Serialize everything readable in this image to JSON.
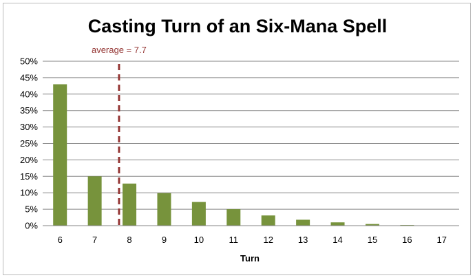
{
  "chart_data": {
    "type": "bar",
    "title": "Casting Turn of an Six-Mana Spell",
    "xlabel": "Turn",
    "ylabel": "",
    "categories": [
      "6",
      "7",
      "8",
      "9",
      "10",
      "11",
      "12",
      "13",
      "14",
      "15",
      "16",
      "17"
    ],
    "values": [
      0.43,
      0.15,
      0.128,
      0.099,
      0.072,
      0.05,
      0.031,
      0.018,
      0.01,
      0.005,
      0.002,
      0.001
    ],
    "ylim": [
      0,
      0.5
    ],
    "yticks": [
      0,
      0.05,
      0.1,
      0.15,
      0.2,
      0.25,
      0.3,
      0.35,
      0.4,
      0.45,
      0.5
    ],
    "ytick_labels": [
      "0%",
      "5%",
      "10%",
      "15%",
      "20%",
      "25%",
      "30%",
      "35%",
      "40%",
      "45%",
      "50%"
    ],
    "grid": true,
    "legend": "none",
    "bar_color": "#77933c",
    "annotation": {
      "text": "average = 7.7",
      "x": 7.7,
      "style": "dashed vertical line",
      "color": "#953735"
    }
  }
}
